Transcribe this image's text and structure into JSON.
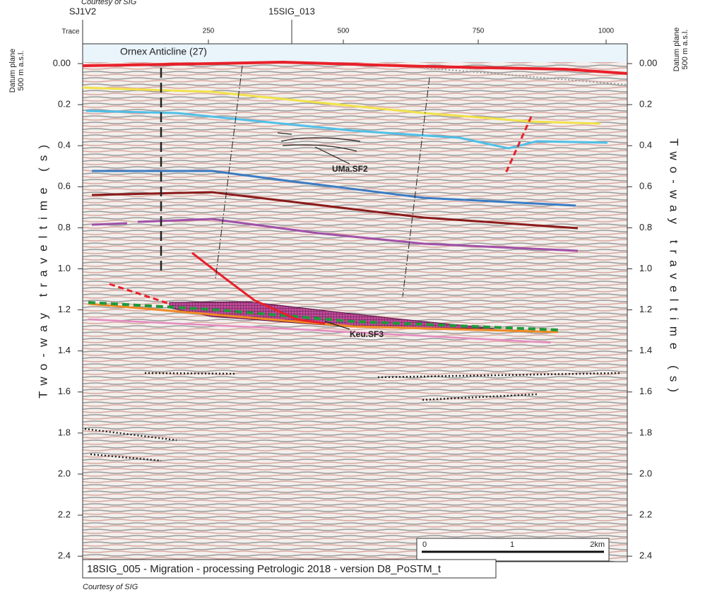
{
  "header": {
    "courtesy_top": "Courtesy of SIG",
    "well_left": "SJ1V2",
    "well_right": "15SIG_013",
    "trace_label": "Trace",
    "trace_ticks": [
      "250",
      "500",
      "750",
      "1000"
    ]
  },
  "axes": {
    "datum_left": [
      "Datum plane",
      "500 m a.s.l."
    ],
    "datum_right": [
      "Datum plane",
      "500 m a.s.l."
    ],
    "time_title": "Two-way traveltime (s)",
    "time_ticks": [
      "0.00",
      "0.2",
      "0.4",
      "0.6",
      "0.8",
      "1.0",
      "1.2",
      "1.4",
      "1.6",
      "1.8",
      "2.0",
      "2.2",
      "2.4"
    ]
  },
  "annotations": {
    "anticline": "Ornex Anticline (27)",
    "fault_upper": "UMa.SF2",
    "fault_lower": "Keu.SF3"
  },
  "scale_bar": {
    "labels": [
      "0",
      "1",
      "2km"
    ]
  },
  "caption": "18SIG_005 - Migration - processing Petrologic 2018 - version D8_PoSTM_t",
  "courtesy_bottom": "Courtesy of SIG"
}
